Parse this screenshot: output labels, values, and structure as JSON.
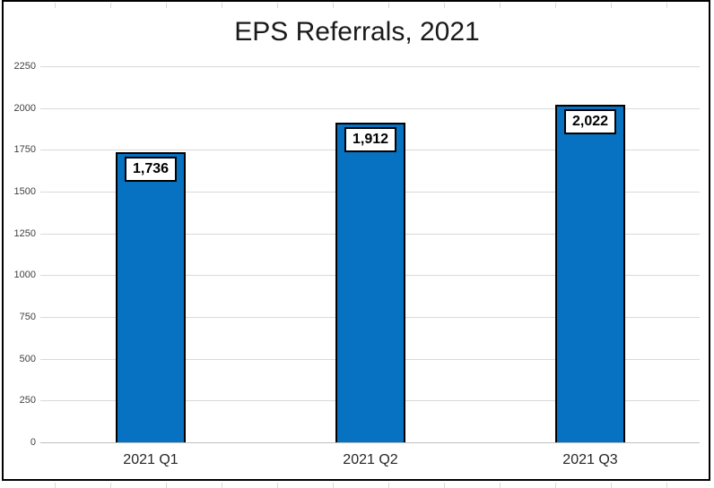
{
  "chart_data": {
    "type": "bar",
    "title": "EPS Referrals, 2021",
    "categories": [
      "2021 Q1",
      "2021 Q2",
      "2021 Q3"
    ],
    "values": [
      1736,
      1912,
      2022
    ],
    "value_labels": [
      "1,736",
      "1,912",
      "2,022"
    ],
    "xlabel": "",
    "ylabel": "",
    "ylim": [
      0,
      2250
    ],
    "yticks": [
      0,
      250,
      500,
      750,
      1000,
      1250,
      1500,
      1750,
      2000,
      2250
    ],
    "grid": "horizontal-only",
    "legend": "none",
    "colors": {
      "bar_fill": "#0772C1",
      "bar_border": "#000000",
      "gridline": "#D9D9D9",
      "axis_line": "#BFBFBF",
      "value_box_bg": "#FFFFFF",
      "value_box_border": "#000000",
      "chart_border": "#000000",
      "title_text": "#1A1A1A",
      "tick_text": "#404040"
    }
  }
}
